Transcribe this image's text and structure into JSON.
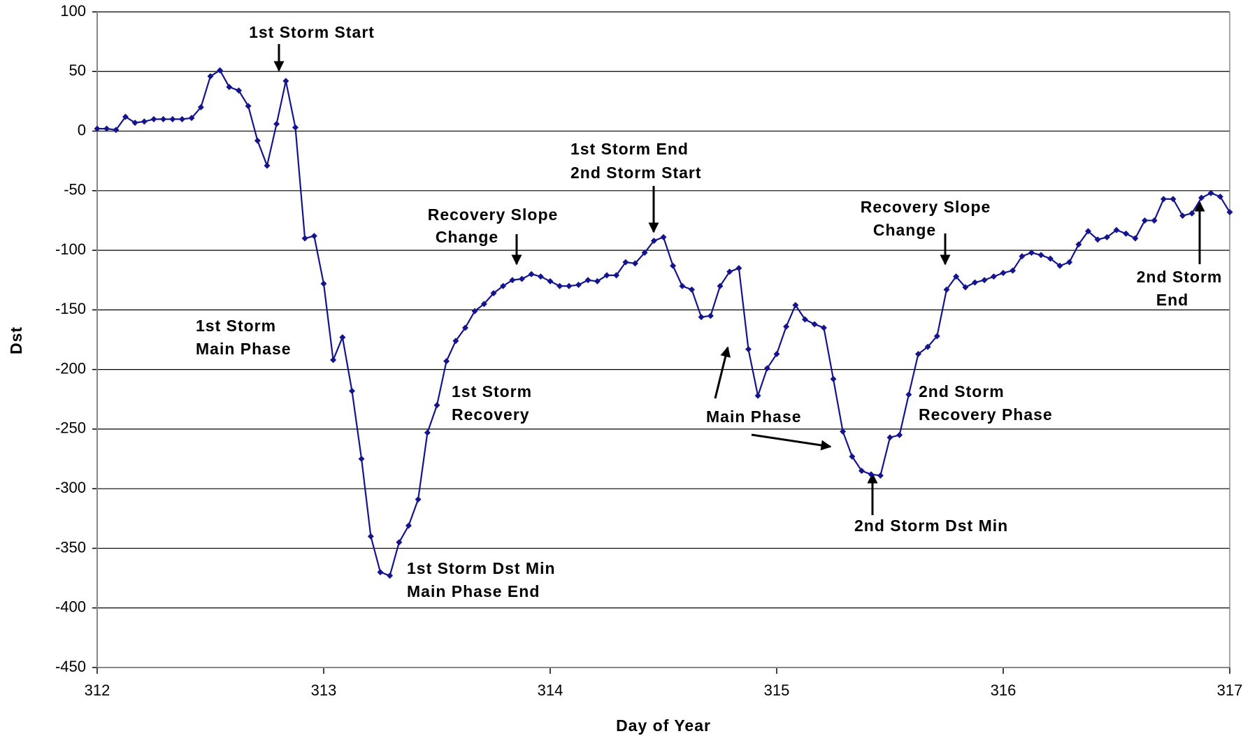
{
  "chart_data": {
    "type": "line",
    "x_label": "Day of Year",
    "y_label": "Dst",
    "color": "#14148c",
    "grid": true,
    "xlim": [
      312,
      317
    ],
    "xticks": [
      312,
      313,
      314,
      315,
      316,
      317
    ],
    "ylim": [
      -450,
      100
    ],
    "yticks": [
      -450,
      -400,
      -350,
      -300,
      -250,
      -200,
      -150,
      -100,
      -50,
      0,
      50,
      100
    ],
    "x": [
      312,
      312.042,
      312.083,
      312.125,
      312.167,
      312.208,
      312.25,
      312.292,
      312.333,
      312.375,
      312.417,
      312.458,
      312.5,
      312.542,
      312.583,
      312.625,
      312.667,
      312.708,
      312.75,
      312.792,
      312.833,
      312.875,
      312.917,
      312.958,
      313,
      313.042,
      313.083,
      313.125,
      313.167,
      313.208,
      313.25,
      313.292,
      313.333,
      313.375,
      313.417,
      313.458,
      313.5,
      313.542,
      313.583,
      313.625,
      313.667,
      313.708,
      313.75,
      313.792,
      313.833,
      313.875,
      313.917,
      313.958,
      314,
      314.042,
      314.083,
      314.125,
      314.167,
      314.208,
      314.25,
      314.292,
      314.333,
      314.375,
      314.417,
      314.458,
      314.5,
      314.542,
      314.583,
      314.625,
      314.667,
      314.708,
      314.75,
      314.792,
      314.833,
      314.875,
      314.917,
      314.958,
      315,
      315.042,
      315.083,
      315.125,
      315.167,
      315.208,
      315.25,
      315.292,
      315.333,
      315.375,
      315.417,
      315.458,
      315.5,
      315.542,
      315.583,
      315.625,
      315.667,
      315.708,
      315.75,
      315.792,
      315.833,
      315.875,
      315.917,
      315.958,
      316,
      316.042,
      316.083,
      316.125,
      316.167,
      316.208,
      316.25,
      316.292,
      316.333,
      316.375,
      316.417,
      316.458,
      316.5,
      316.542,
      316.583,
      316.625,
      316.667,
      316.708,
      316.75,
      316.792,
      316.833,
      316.875,
      316.917,
      316.958,
      317
    ],
    "values": [
      2,
      2,
      1,
      12,
      7,
      8,
      10,
      10,
      10,
      10,
      11,
      20,
      46,
      51,
      37,
      34,
      21,
      -8,
      -29,
      6,
      42,
      3,
      -90,
      -88,
      -128,
      -192,
      -173,
      -218,
      -275,
      -340,
      -370,
      -373,
      -345,
      -331,
      -309,
      -253,
      -230,
      -193,
      -176,
      -165,
      -151,
      -145,
      -136,
      -130,
      -125,
      -124,
      -120,
      -122,
      -126,
      -130,
      -130,
      -129,
      -125,
      -126,
      -121,
      -121,
      -110,
      -111,
      -102,
      -92,
      -89,
      -113,
      -130,
      -133,
      -156,
      -155,
      -130,
      -118,
      -115,
      -183,
      -222,
      -199,
      -187,
      -164,
      -146,
      -158,
      -162,
      -165,
      -208,
      -252,
      -273,
      -285,
      -288,
      -289,
      -257,
      -255,
      -221,
      -187,
      -181,
      -172,
      -133,
      -122,
      -131,
      -127,
      -125,
      -122,
      -119,
      -117,
      -105,
      -102,
      -104,
      -107,
      -113,
      -110,
      -95,
      -84,
      -91,
      -89,
      -83,
      -86,
      -90,
      -75,
      -75,
      -57,
      -57,
      -71,
      -69,
      -56,
      -52,
      -55,
      -68
    ],
    "annotations": [
      [
        "1st Storm Start"
      ],
      [
        "1st Storm",
        "Main Phase"
      ],
      [
        "1st Storm Dst Min",
        "Main Phase End"
      ],
      [
        "1st Storm",
        "Recovery"
      ],
      [
        "Recovery Slope",
        "Change"
      ],
      [
        "1st Storm End",
        "2nd Storm Start"
      ],
      [
        "Main Phase"
      ],
      [
        "Recovery Slope",
        "Change"
      ],
      [
        "2nd Storm",
        "Recovery Phase"
      ],
      [
        "2nd Storm Dst Min"
      ],
      [
        "2nd Storm",
        "End"
      ]
    ]
  }
}
